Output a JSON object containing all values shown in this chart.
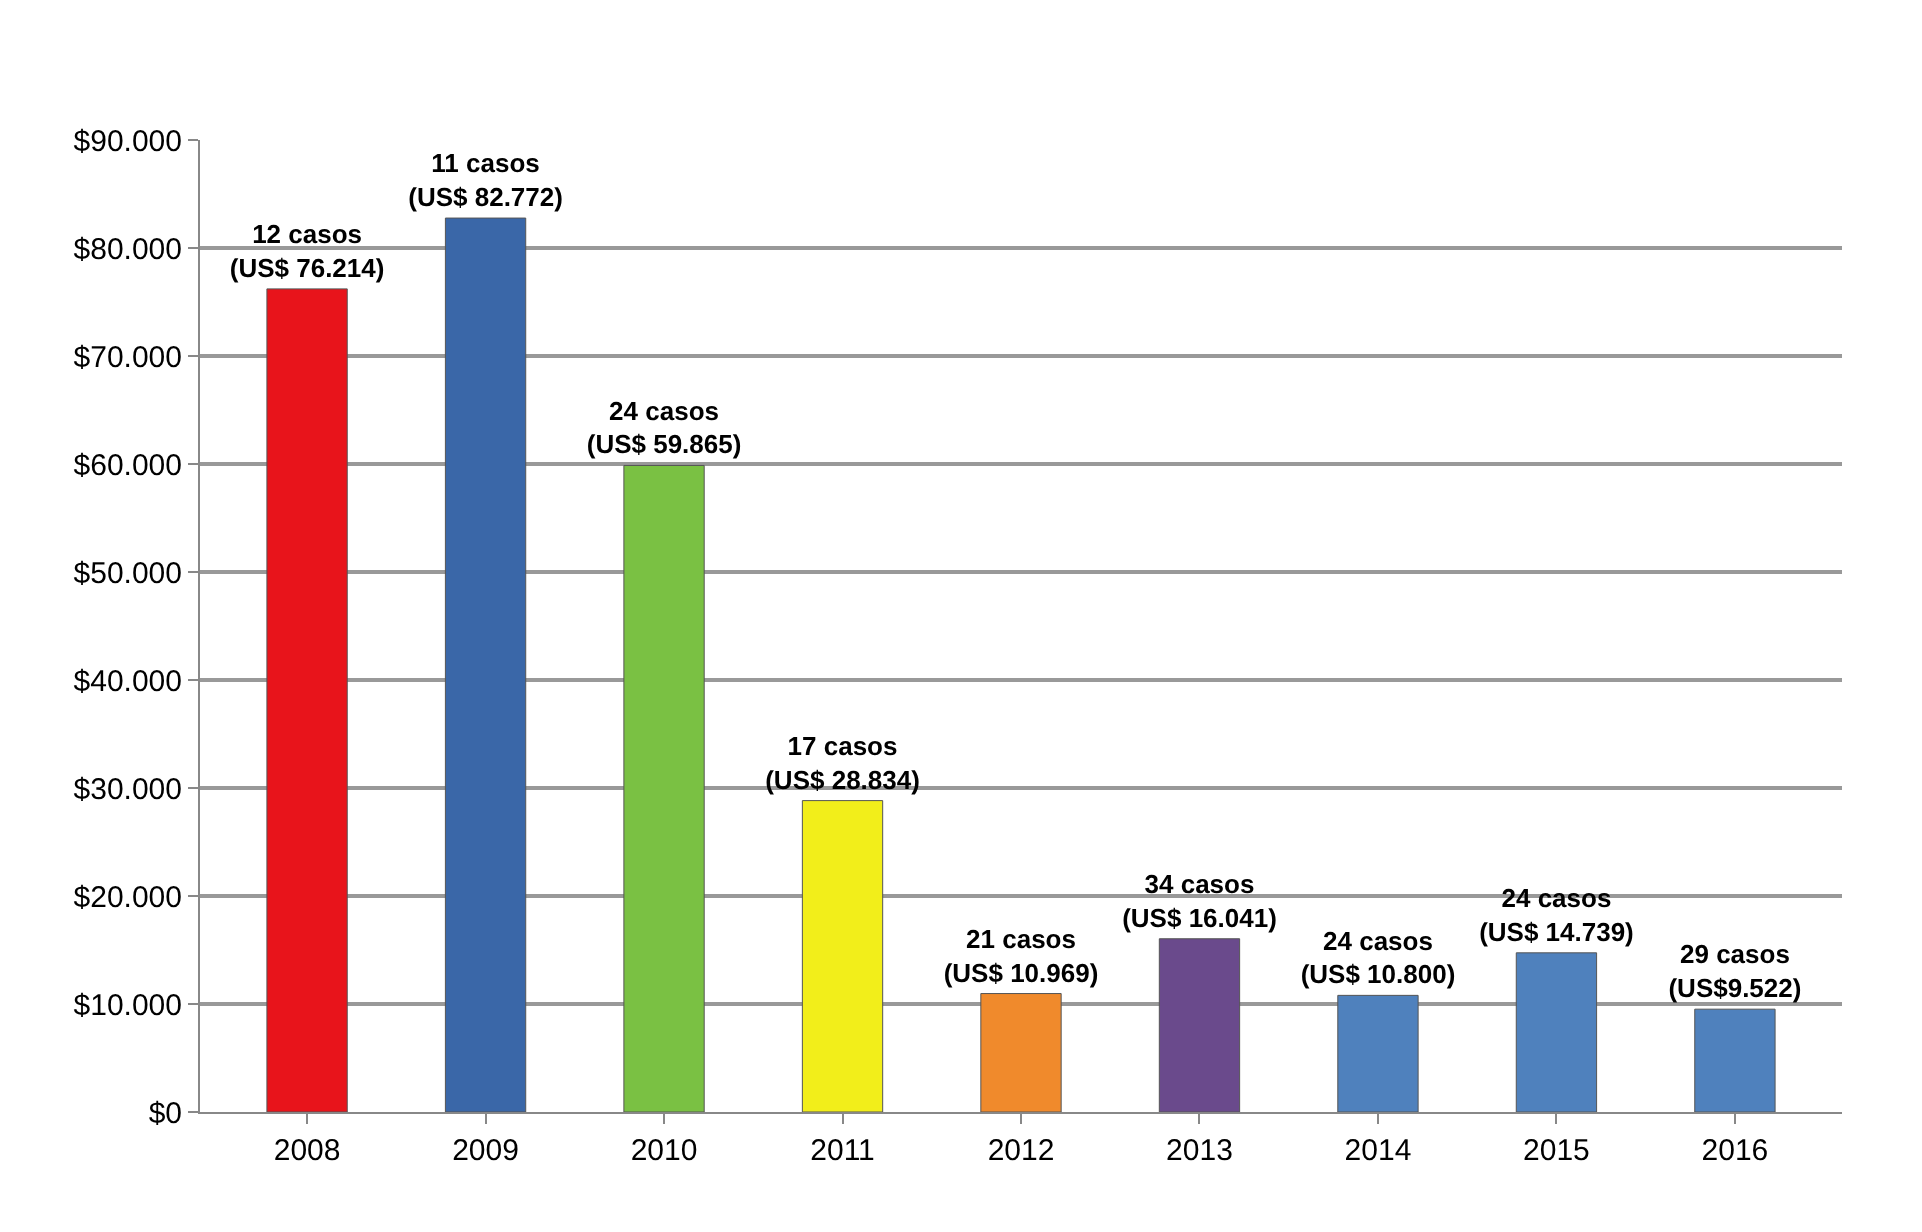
{
  "chart_data": {
    "type": "bar",
    "categories": [
      "2008",
      "2009",
      "2010",
      "2011",
      "2012",
      "2013",
      "2014",
      "2015",
      "2016"
    ],
    "values": [
      76214,
      82772,
      59865,
      28834,
      10969,
      16041,
      10800,
      14739,
      9522
    ],
    "colors": [
      "#e8141b",
      "#3a67a8",
      "#7ac143",
      "#f2ee1a",
      "#f08a2c",
      "#6a4a8c",
      "#4f81bd",
      "#4f81bd",
      "#4f81bd"
    ],
    "value_labels": [
      "12 casos\n(US$ 76.214)",
      "11 casos\n(US$ 82.772)",
      "24 casos\n(US$ 59.865)",
      "17 casos\n(US$ 28.834)",
      "21 casos\n(US$ 10.969)",
      "34 casos\n(US$ 16.041)",
      "24 casos\n(US$ 10.800)",
      "24 casos\n(US$ 14.739)",
      "29 casos\n(US$9.522)"
    ],
    "ylim": [
      0,
      90000
    ],
    "yticks": [
      {
        "value": 0,
        "label": "$0"
      },
      {
        "value": 10000,
        "label": "$10.000"
      },
      {
        "value": 20000,
        "label": "$20.000"
      },
      {
        "value": 30000,
        "label": "$30.000"
      },
      {
        "value": 40000,
        "label": "$40.000"
      },
      {
        "value": 50000,
        "label": "$50.000"
      },
      {
        "value": 60000,
        "label": "$60.000"
      },
      {
        "value": 70000,
        "label": "$70.000"
      },
      {
        "value": 80000,
        "label": "$80.000"
      },
      {
        "value": 90000,
        "label": "$90.000"
      }
    ],
    "grid": "y"
  }
}
